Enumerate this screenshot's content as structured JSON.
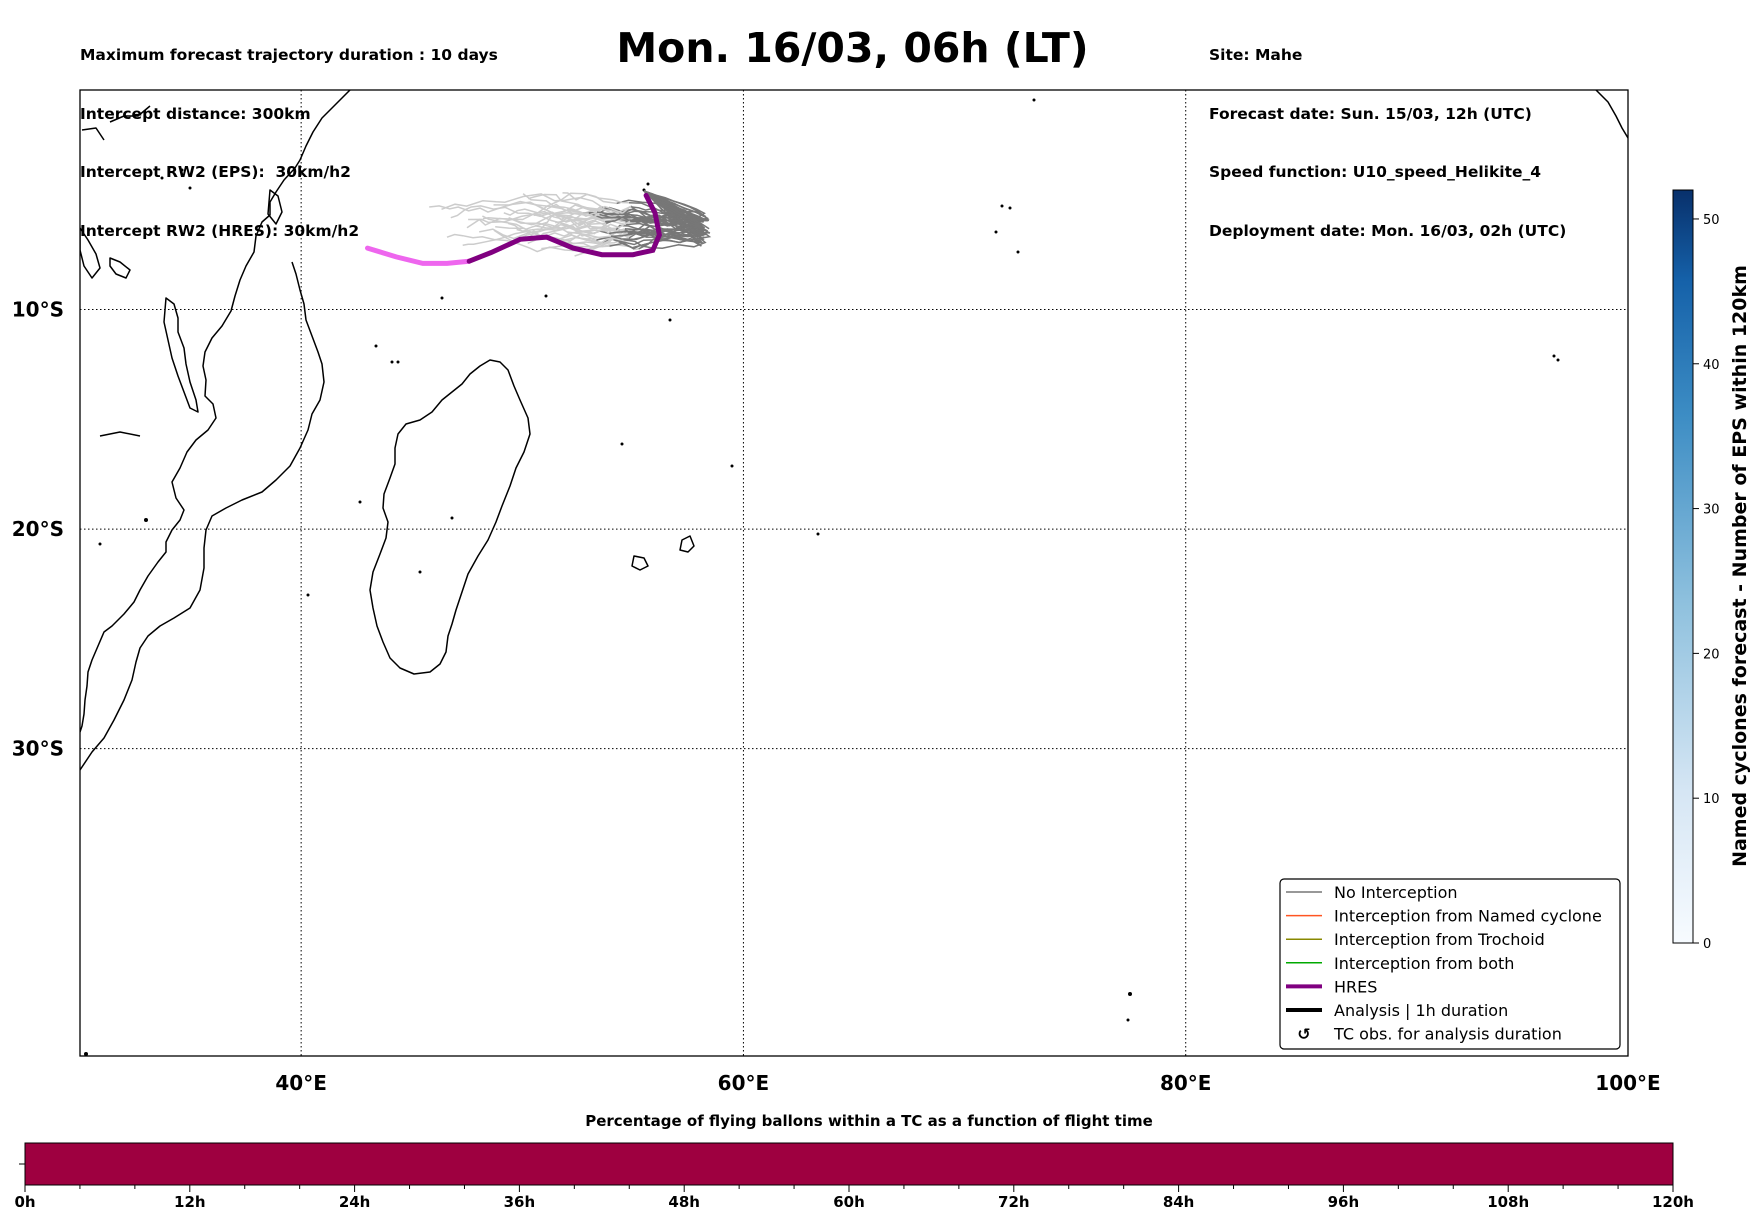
{
  "header": {
    "title": "Mon. 16/03, 06h (LT)",
    "left_lines": [
      "Maximum forecast trajectory duration : 10 days",
      "Intercept distance: 300km",
      "Intercept RW2 (EPS):  30km/h2",
      "Intercept RW2 (HRES): 30km/h2"
    ],
    "right_lines": [
      "Site: Mahe",
      "Forecast date: Sun. 15/03, 12h (UTC)",
      "Speed function: U10_speed_Helikite_4",
      "Deployment date: Mon. 16/03, 02h (UTC)"
    ]
  },
  "map": {
    "lon_range": [
      30,
      100
    ],
    "lat_range": [
      0,
      -44
    ],
    "lon_ticks": [
      {
        "value": 40,
        "label": "40°E"
      },
      {
        "value": 60,
        "label": "60°E"
      },
      {
        "value": 80,
        "label": "80°E"
      },
      {
        "value": 100,
        "label": "100°E"
      }
    ],
    "lat_ticks": [
      {
        "value": -10,
        "label": "10°S"
      },
      {
        "value": -20,
        "label": "20°S"
      },
      {
        "value": -30,
        "label": "30°S"
      }
    ],
    "gridlines": "dotted",
    "launch_site": {
      "name": "Mahe",
      "lon": 55.5,
      "lat": -4.6
    },
    "hres_track": [
      [
        55.6,
        -4.8
      ],
      [
        56.0,
        -5.6
      ],
      [
        56.2,
        -6.6
      ],
      [
        55.9,
        -7.3
      ],
      [
        55.0,
        -7.5
      ],
      [
        53.6,
        -7.5
      ],
      [
        52.3,
        -7.2
      ],
      [
        51.1,
        -6.7
      ],
      [
        49.9,
        -6.8
      ],
      [
        48.6,
        -7.4
      ],
      [
        47.6,
        -7.8
      ],
      [
        46.6,
        -7.9
      ],
      [
        45.5,
        -7.9
      ],
      [
        44.3,
        -7.6
      ],
      [
        43.0,
        -7.2
      ]
    ],
    "eps_colors": {
      "no_interception": "#777777",
      "faded": "#cccccc",
      "hres_far": "#ee66ee",
      "hres_near": "#800080"
    }
  },
  "legend": {
    "placement": "lower-right",
    "items": [
      {
        "label": "No Interception",
        "color": "#777777",
        "style": "thin"
      },
      {
        "label": "Interception from Named cyclone",
        "color": "#ff5522",
        "style": "thin"
      },
      {
        "label": "Interception from Trochoid",
        "color": "#888800",
        "style": "thin"
      },
      {
        "label": "Interception from both",
        "color": "#00aa00",
        "style": "thin"
      },
      {
        "label": "HRES",
        "color": "#800080",
        "style": "thick"
      },
      {
        "label": "Analysis | 1h duration",
        "color": "#000000",
        "style": "thick"
      },
      {
        "label": "TC obs. for analysis duration",
        "color": "#000000",
        "style": "symbol",
        "symbol": "↺"
      }
    ]
  },
  "colorbar": {
    "label": "Named cyclones forecast - Number of EPS within 120km",
    "range": [
      0,
      52
    ],
    "ticks": [
      "0",
      "10",
      "20",
      "30",
      "40",
      "50"
    ],
    "color_low": "#f7fbff",
    "color_high": "#08306b"
  },
  "flight_bar": {
    "title": "Percentage of flying ballons within a TC as a function of flight time",
    "color": "#9e0040",
    "range_hours": [
      0,
      120
    ],
    "ticks": [
      "0h",
      "12h",
      "24h",
      "36h",
      "48h",
      "60h",
      "72h",
      "84h",
      "96h",
      "108h",
      "120h"
    ]
  }
}
